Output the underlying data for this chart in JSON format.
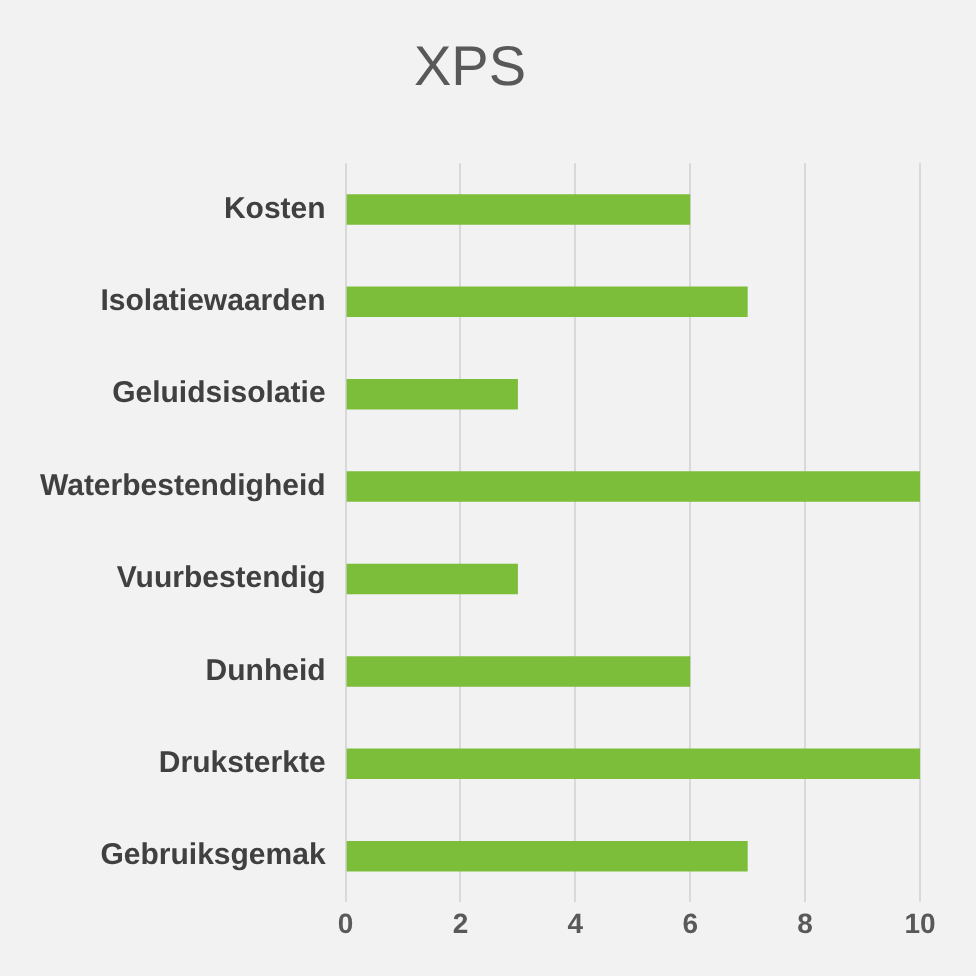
{
  "chart_data": {
    "type": "bar",
    "title": "XPS",
    "orientation": "horizontal",
    "categories": [
      "Kosten",
      "Isolatiewaarden",
      "Geluidsisolatie",
      "Waterbestendigheid",
      "Vuurbestendig",
      "Dunheid",
      "Druksterkte",
      "Gebruiksgemak"
    ],
    "values": [
      6,
      7,
      3,
      10,
      3,
      6,
      10,
      7
    ],
    "color": "#7cbd3a",
    "xlim": [
      0,
      10
    ],
    "xticks": [
      0,
      2,
      4,
      6,
      8,
      10
    ],
    "grid": "x",
    "legend": false
  }
}
